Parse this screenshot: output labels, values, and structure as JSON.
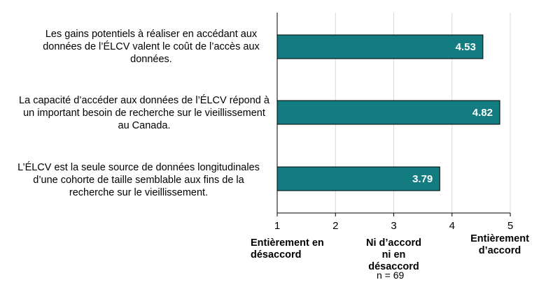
{
  "chart_data": {
    "type": "bar",
    "orientation": "horizontal",
    "categories": [
      "Les gains potentiels à réaliser en accédant aux données de l’ÉLCV valent le coût de l’accès aux données.",
      "La capacité d’accéder aux données de l’ÉLCV répond à un important besoin de recherche sur le vieillissement au Canada.",
      "L’ÉLCV est la seule source de données longitudinales d’une cohorte de taille semblable aux fins de la recherche sur le vieillissement."
    ],
    "values": [
      4.53,
      4.82,
      3.79
    ],
    "value_labels": [
      "4.53",
      "4.82",
      "3.79"
    ],
    "xlim": [
      1,
      5
    ],
    "x_ticks": [
      "1",
      "2",
      "3",
      "4",
      "5"
    ],
    "grid": "vertical",
    "bar_color": "#127c80",
    "scale_anchors": {
      "low": "Entièrement en désaccord",
      "mid": "Ni d’accord ni en désaccord",
      "high": "Entièrement d’accord"
    },
    "note": "n = 69"
  }
}
